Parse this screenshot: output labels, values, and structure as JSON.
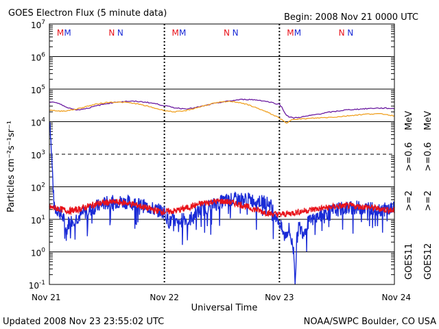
{
  "header": {
    "title": "GOES Electron Flux (5 minute data)",
    "begin": "Begin: 2008 Nov 21 0000 UTC"
  },
  "footer": {
    "updated": "Updated 2008 Nov 23 23:55:02 UTC",
    "credit": "NOAA/SWPC Boulder, CO USA"
  },
  "chart_data": {
    "type": "line",
    "title": "GOES Electron Flux (5 minute data)",
    "xlabel": "Universal Time",
    "ylabel": "Particles cm⁻²s⁻¹sr⁻¹",
    "y_scale": "log",
    "ylim": [
      0.1,
      10000000
    ],
    "xlim": [
      0,
      72
    ],
    "x_unit": "hours since 2008 Nov 21 0000 UTC",
    "x_ticks": [
      "Nov 21",
      "Nov 22",
      "Nov 23",
      "Nov 24"
    ],
    "y_ticks": [
      {
        "base": "10",
        "exp": "-1"
      },
      {
        "base": "10",
        "exp": "0"
      },
      {
        "base": "10",
        "exp": "1"
      },
      {
        "base": "10",
        "exp": "2"
      },
      {
        "base": "10",
        "exp": "3"
      },
      {
        "base": "10",
        "exp": "4"
      },
      {
        "base": "10",
        "exp": "5"
      },
      {
        "base": "10",
        "exp": "6"
      },
      {
        "base": "10",
        "exp": "7"
      }
    ],
    "grid": true,
    "legend_position": "right",
    "right_labels": {
      "goes11": "GOES11",
      "goes12": "GOES12",
      "g11_high": ">=2",
      "g11_low": ">=0.6",
      "g12_high": ">=2",
      "g12_low": ">=0.6",
      "unit_top": "MeV",
      "unit_bottom": "MeV"
    },
    "midnight_markers": [
      "M",
      "M",
      "M",
      "M",
      "M",
      "M"
    ],
    "noon_markers": [
      "N",
      "N",
      "N",
      "N",
      "N",
      "N"
    ],
    "marker_colors": {
      "goes12": "#e8121a",
      "goes11": "#1a2bd6"
    },
    "series": [
      {
        "name": "GOES11 >=0.6 MeV",
        "color": "#6a1aa0",
        "x": [
          0,
          1,
          2,
          3,
          4,
          5,
          6,
          8,
          10,
          12,
          14,
          16,
          18,
          20,
          22,
          24,
          26,
          28,
          30,
          32,
          34,
          36,
          38,
          40,
          42,
          44,
          46,
          48,
          48.5,
          49,
          49.5,
          50,
          51,
          52,
          54,
          56,
          58,
          60,
          62,
          64,
          66,
          68,
          70,
          72
        ],
        "values": [
          40000,
          40000,
          36000,
          30000,
          27000,
          24000,
          23000,
          26000,
          31000,
          36000,
          40000,
          42000,
          42000,
          40000,
          36000,
          31000,
          27000,
          25000,
          26000,
          30000,
          35000,
          40000,
          44000,
          48000,
          48000,
          45000,
          40000,
          34000,
          28000,
          20000,
          16000,
          14000,
          13000,
          13500,
          15000,
          17000,
          19000,
          21000,
          23000,
          24000,
          25000,
          26000,
          26000,
          25000
        ]
      },
      {
        "name": "GOES12 >=0.6 MeV",
        "color": "#f0a020",
        "x": [
          0,
          2,
          4,
          6,
          8,
          10,
          12,
          14,
          16,
          18,
          20,
          22,
          24,
          26,
          28,
          30,
          32,
          34,
          36,
          38,
          40,
          42,
          44,
          46,
          48,
          49,
          49.5,
          50,
          50.5,
          51,
          52,
          54,
          56,
          58,
          60,
          62,
          64,
          66,
          68,
          70,
          72
        ],
        "values": [
          23000,
          21000,
          22000,
          25000,
          30000,
          35000,
          39000,
          40000,
          39000,
          36000,
          31000,
          26000,
          22000,
          20000,
          21000,
          25000,
          30000,
          36000,
          40000,
          42000,
          38000,
          31000,
          24000,
          18000,
          13000,
          10000,
          8800,
          10000,
          11500,
          12000,
          12000,
          12500,
          13000,
          13500,
          14000,
          15000,
          16000,
          17000,
          17500,
          17000,
          15000
        ]
      },
      {
        "name": "GOES11 >=2 MeV",
        "color": "#1a2bd6",
        "x": [
          0,
          1,
          2,
          3,
          3.5,
          4,
          5,
          6,
          7,
          8,
          10,
          12,
          14,
          16,
          18,
          20,
          22,
          24,
          25,
          26,
          27,
          28,
          29,
          30,
          32,
          34,
          36,
          38,
          40,
          42,
          44,
          46,
          48,
          49,
          50,
          51,
          51.3,
          51.6,
          52,
          53,
          54,
          56,
          58,
          60,
          62,
          64,
          66,
          68,
          70,
          72
        ],
        "values": [
          25000,
          22,
          18,
          10,
          4,
          8,
          10,
          12,
          15,
          18,
          25,
          32,
          35,
          34,
          30,
          25,
          20,
          17,
          8,
          10,
          6,
          12,
          8,
          14,
          20,
          27,
          35,
          40,
          42,
          40,
          36,
          30,
          8,
          3,
          5,
          1,
          0.12,
          2,
          6,
          4,
          8,
          12,
          16,
          20,
          22,
          23,
          22,
          21,
          20,
          22
        ]
      },
      {
        "name": "GOES12 >=2 MeV",
        "color": "#e8121a",
        "x": [
          0,
          2,
          4,
          6,
          8,
          10,
          12,
          14,
          16,
          18,
          20,
          22,
          24,
          26,
          28,
          30,
          32,
          34,
          36,
          38,
          40,
          42,
          44,
          46,
          48,
          50,
          52,
          54,
          56,
          58,
          60,
          62,
          64,
          66,
          68,
          70,
          72
        ],
        "values": [
          24,
          21,
          18,
          20,
          25,
          30,
          33,
          34,
          32,
          28,
          23,
          19,
          17,
          18,
          21,
          26,
          31,
          35,
          36,
          33,
          28,
          22,
          18,
          15,
          14,
          15,
          17,
          19,
          21,
          23,
          25,
          26,
          25,
          24,
          22,
          20,
          18
        ]
      }
    ]
  }
}
